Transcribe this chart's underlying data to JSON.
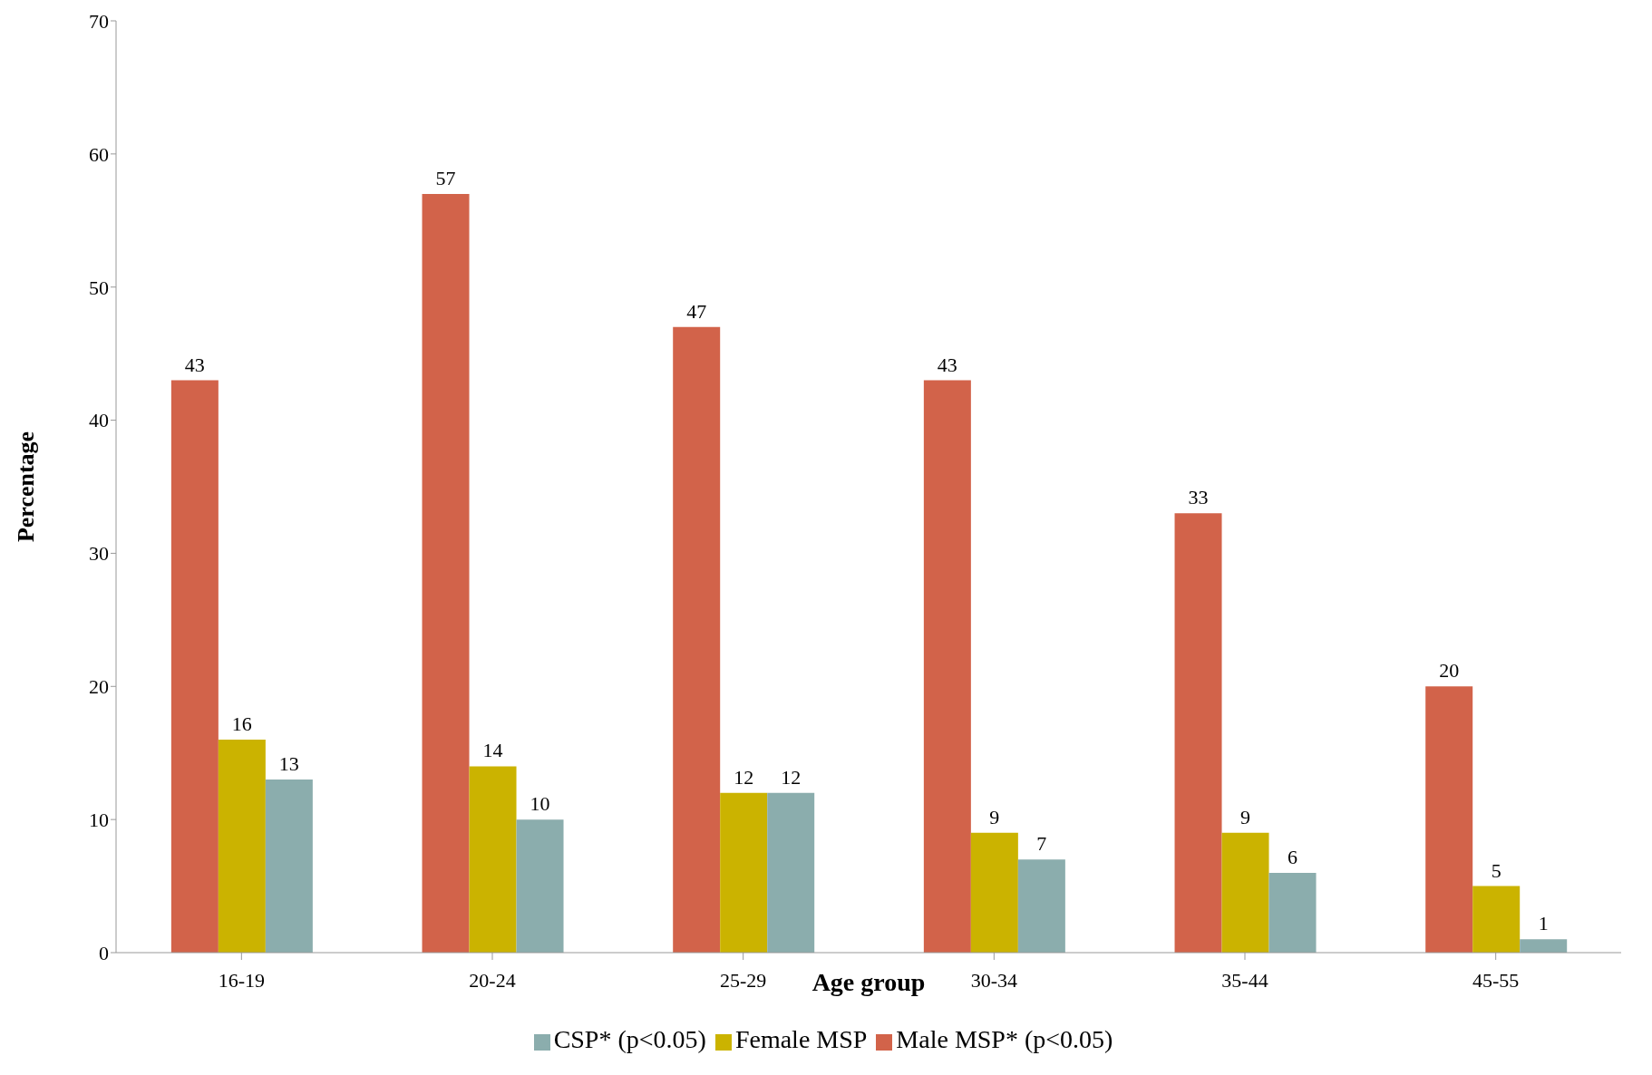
{
  "chart_data": {
    "type": "bar",
    "xlabel": "Age group",
    "ylabel": "Percentage",
    "categories": [
      "16-19",
      "20-24",
      "25-29",
      "30-34",
      "35-44",
      "45-55"
    ],
    "series": [
      {
        "name": "Male MSP* (p<0.05)",
        "color": "#d2634a",
        "values": [
          43,
          57,
          47,
          43,
          33,
          20
        ]
      },
      {
        "name": "Female MSP",
        "color": "#cbb300",
        "values": [
          16,
          14,
          12,
          9,
          9,
          5
        ]
      },
      {
        "name": "CSP* (p<0.05)",
        "color": "#8badad",
        "values": [
          13,
          10,
          12,
          7,
          6,
          1
        ]
      }
    ],
    "ylim": [
      0,
      70
    ],
    "yticks": [
      0,
      10,
      20,
      30,
      40,
      50,
      60,
      70
    ],
    "grid": false,
    "legend": "bottom",
    "data_labels": true
  }
}
